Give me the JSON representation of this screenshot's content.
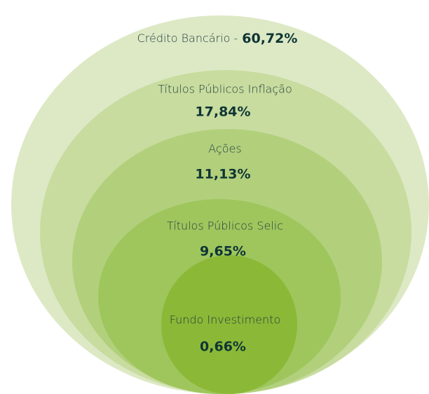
{
  "chart_data": {
    "type": "nested-ellipse",
    "categories": [
      "Crédito Bancário -",
      "Títulos Públicos Inflação",
      "Ações",
      "Títulos Públicos Selic",
      "Fundo Investimento"
    ],
    "values": [
      60.72,
      17.84,
      11.13,
      9.65,
      0.66
    ],
    "value_labels": [
      "60,72%",
      "17,84%",
      "11,13%",
      "9,65%",
      "0,66%"
    ],
    "colors": [
      "#dde9c5",
      "#c8dc9f",
      "#b2d07c",
      "#9ec65d",
      "#8bb937"
    ]
  }
}
